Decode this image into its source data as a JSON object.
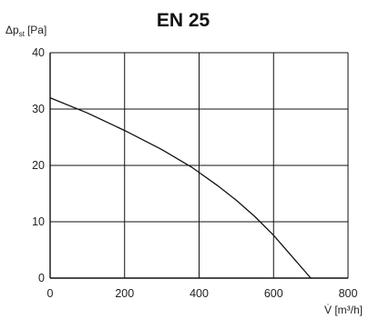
{
  "chart_data": {
    "type": "line",
    "title": "EN 25",
    "ylabel_main": "Δp",
    "ylabel_sub": "st",
    "ylabel_unit": "[Pa]",
    "xlabel": "V̇ [m³/h]",
    "xlim": [
      0,
      800
    ],
    "ylim": [
      0,
      40
    ],
    "x_ticks": [
      0,
      200,
      400,
      600,
      800
    ],
    "y_ticks": [
      0,
      10,
      20,
      30,
      40
    ],
    "grid": true,
    "series": [
      {
        "x": [
          0,
          100,
          200,
          300,
          380,
          450,
          500,
          550,
          600,
          650,
          700
        ],
        "y": [
          32,
          29.3,
          26.2,
          22.8,
          19.7,
          16.4,
          13.8,
          10.9,
          7.6,
          3.8,
          0
        ]
      }
    ]
  }
}
